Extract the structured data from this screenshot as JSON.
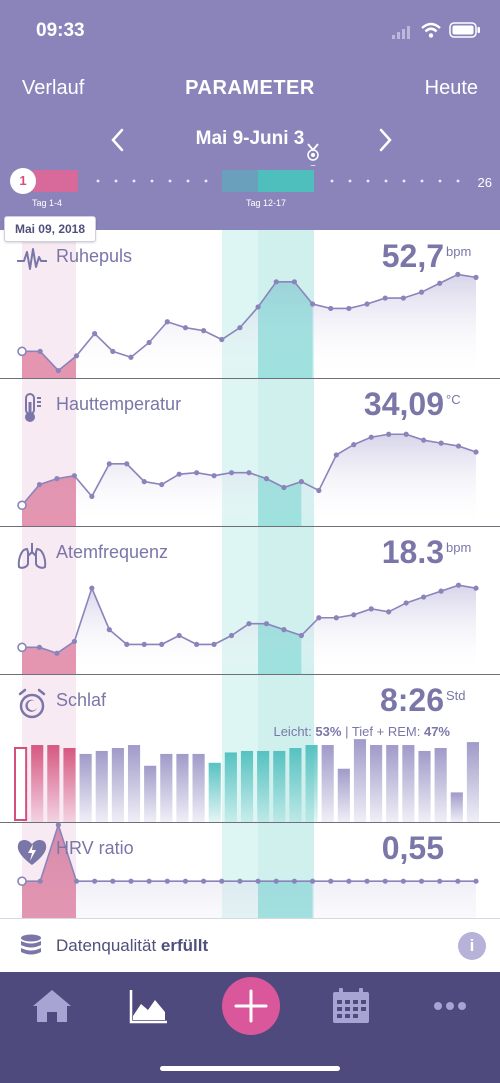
{
  "status": {
    "time": "09:33"
  },
  "nav": {
    "left": "Verlauf",
    "title": "PARAMETER",
    "right": "Heute"
  },
  "range": {
    "label": "Mai 9-Juni 3"
  },
  "timeline": {
    "start_day": "1",
    "end_day": "26",
    "phase1_label": "Tag 1-4",
    "phase2_label": "Tag 12-17"
  },
  "tooltip": {
    "date": "Mai 09, 2018"
  },
  "panels": [
    {
      "id": "ruhepuls",
      "title": "Ruhepuls",
      "value": "52,7",
      "unit": "bpm",
      "icon": "heartbeat-icon",
      "points": [
        0.82,
        0.82,
        0.95,
        0.85,
        0.7,
        0.82,
        0.86,
        0.76,
        0.62,
        0.66,
        0.68,
        0.74,
        0.66,
        0.52,
        0.35,
        0.35,
        0.5,
        0.53,
        0.53,
        0.5,
        0.46,
        0.46,
        0.42,
        0.36,
        0.3,
        0.32
      ]
    },
    {
      "id": "hauttemperatur",
      "title": "Hauttemperatur",
      "value": "34,09",
      "unit": "°C",
      "icon": "thermometer-icon",
      "points": [
        0.86,
        0.72,
        0.68,
        0.66,
        0.8,
        0.58,
        0.58,
        0.7,
        0.72,
        0.65,
        0.64,
        0.66,
        0.64,
        0.64,
        0.68,
        0.74,
        0.7,
        0.76,
        0.52,
        0.45,
        0.4,
        0.38,
        0.38,
        0.42,
        0.44,
        0.46,
        0.5
      ]
    },
    {
      "id": "atemfrequenz",
      "title": "Atemfrequenz",
      "value": "18.3",
      "unit": "bpm",
      "icon": "lungs-icon",
      "points": [
        0.82,
        0.82,
        0.86,
        0.78,
        0.42,
        0.7,
        0.8,
        0.8,
        0.8,
        0.74,
        0.8,
        0.8,
        0.74,
        0.66,
        0.66,
        0.7,
        0.74,
        0.62,
        0.62,
        0.6,
        0.56,
        0.58,
        0.52,
        0.48,
        0.44,
        0.4,
        0.42
      ]
    },
    {
      "id": "schlaf",
      "title": "Schlaf",
      "value": "8:26",
      "unit": "Std",
      "icon": "alarm-clock-icon",
      "note_light_label": "Leicht:",
      "note_light_value": "53%",
      "note_deep_label": "Tief + REM:",
      "note_deep_value": "47%",
      "bars": [
        0.5,
        0.52,
        0.52,
        0.5,
        0.46,
        0.48,
        0.5,
        0.52,
        0.38,
        0.46,
        0.46,
        0.46,
        0.4,
        0.47,
        0.48,
        0.48,
        0.48,
        0.5,
        0.52,
        0.52,
        0.36,
        0.56,
        0.52,
        0.52,
        0.52,
        0.48,
        0.5,
        0.2,
        0.54
      ]
    },
    {
      "id": "hrv",
      "title": "HRV ratio",
      "value": "0,55",
      "unit": "",
      "icon": "heart-bolt-icon",
      "points": [
        0.4,
        0.4,
        0.02,
        0.4,
        0.4,
        0.4,
        0.4,
        0.4,
        0.4,
        0.4,
        0.4,
        0.4,
        0.4,
        0.4,
        0.4,
        0.4,
        0.4,
        0.4,
        0.4,
        0.4,
        0.4,
        0.4,
        0.4,
        0.4,
        0.4,
        0.4
      ]
    }
  ],
  "footer": {
    "label": "Datenqualität",
    "value": "erfüllt"
  },
  "tabs": {
    "home": "home-icon",
    "chart": "chart-icon",
    "add": "plus-icon",
    "calendar": "calendar-icon",
    "more": "more-icon"
  },
  "colors": {
    "header": "#8a84bb",
    "accent_pink": "#d4507a",
    "teal": "#5fcfc9",
    "purple": "#8a84bb",
    "tabbar": "#4e4a7e"
  }
}
